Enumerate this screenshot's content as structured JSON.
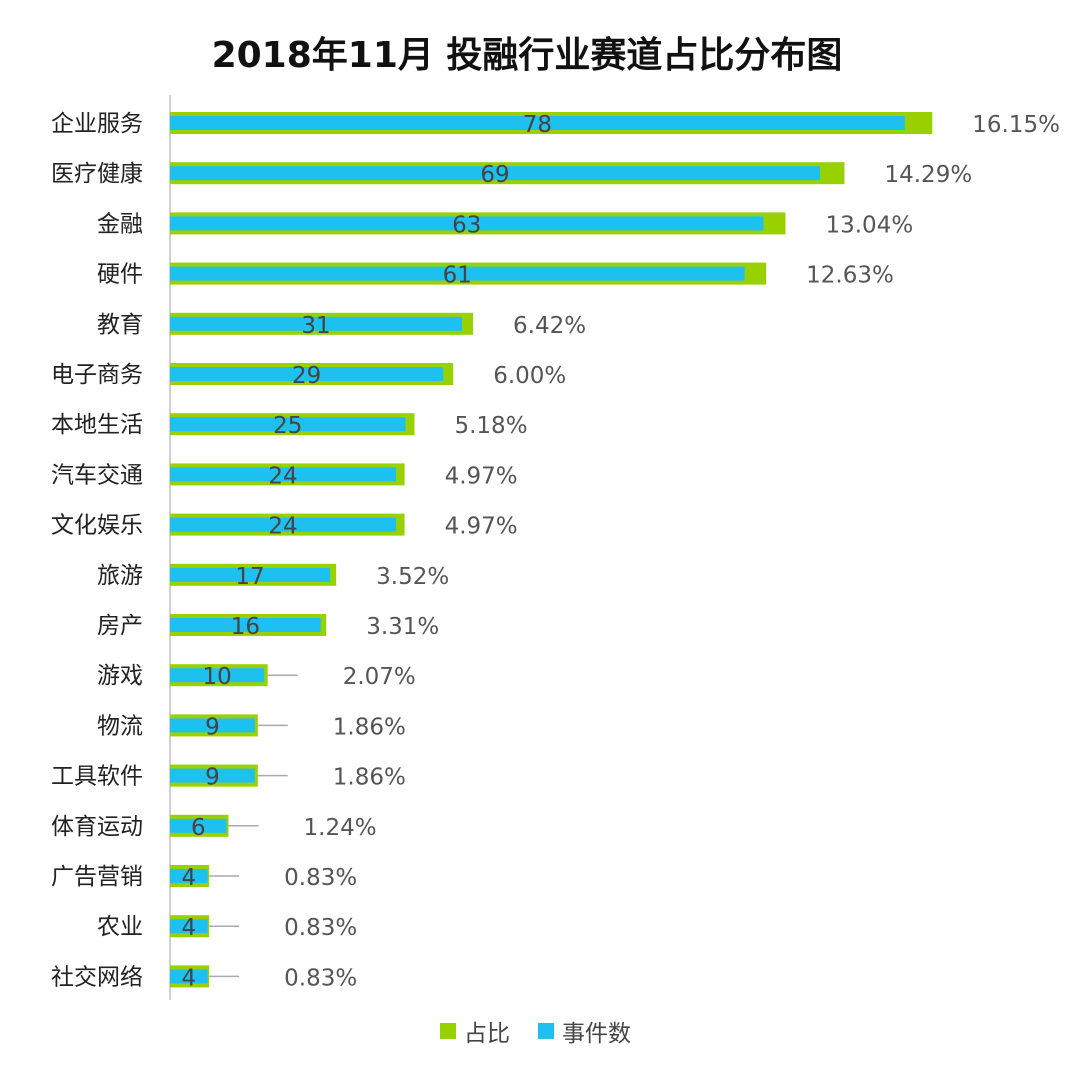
{
  "chart_data": {
    "type": "bar",
    "orientation": "horizontal",
    "title": "2018年11月 投融行业赛道占比分布图",
    "categories": [
      "企业服务",
      "医疗健康",
      "金融",
      "硬件",
      "教育",
      "电子商务",
      "本地生活",
      "汽车交通",
      "文化娱乐",
      "旅游",
      "房产",
      "游戏",
      "物流",
      "工具软件",
      "体育运动",
      "广告营销",
      "农业",
      "社交网络"
    ],
    "series": [
      {
        "name": "占比",
        "unit": "%",
        "color": "#99d100",
        "values": [
          16.15,
          14.29,
          13.04,
          12.63,
          6.42,
          6.0,
          5.18,
          4.97,
          4.97,
          3.52,
          3.31,
          2.07,
          1.86,
          1.86,
          1.24,
          0.83,
          0.83,
          0.83
        ]
      },
      {
        "name": "事件数",
        "color": "#1ec0f0",
        "values": [
          78,
          69,
          63,
          61,
          31,
          29,
          25,
          24,
          24,
          17,
          16,
          10,
          9,
          9,
          6,
          4,
          4,
          4
        ]
      }
    ],
    "legend": "bottom",
    "grid": false
  }
}
